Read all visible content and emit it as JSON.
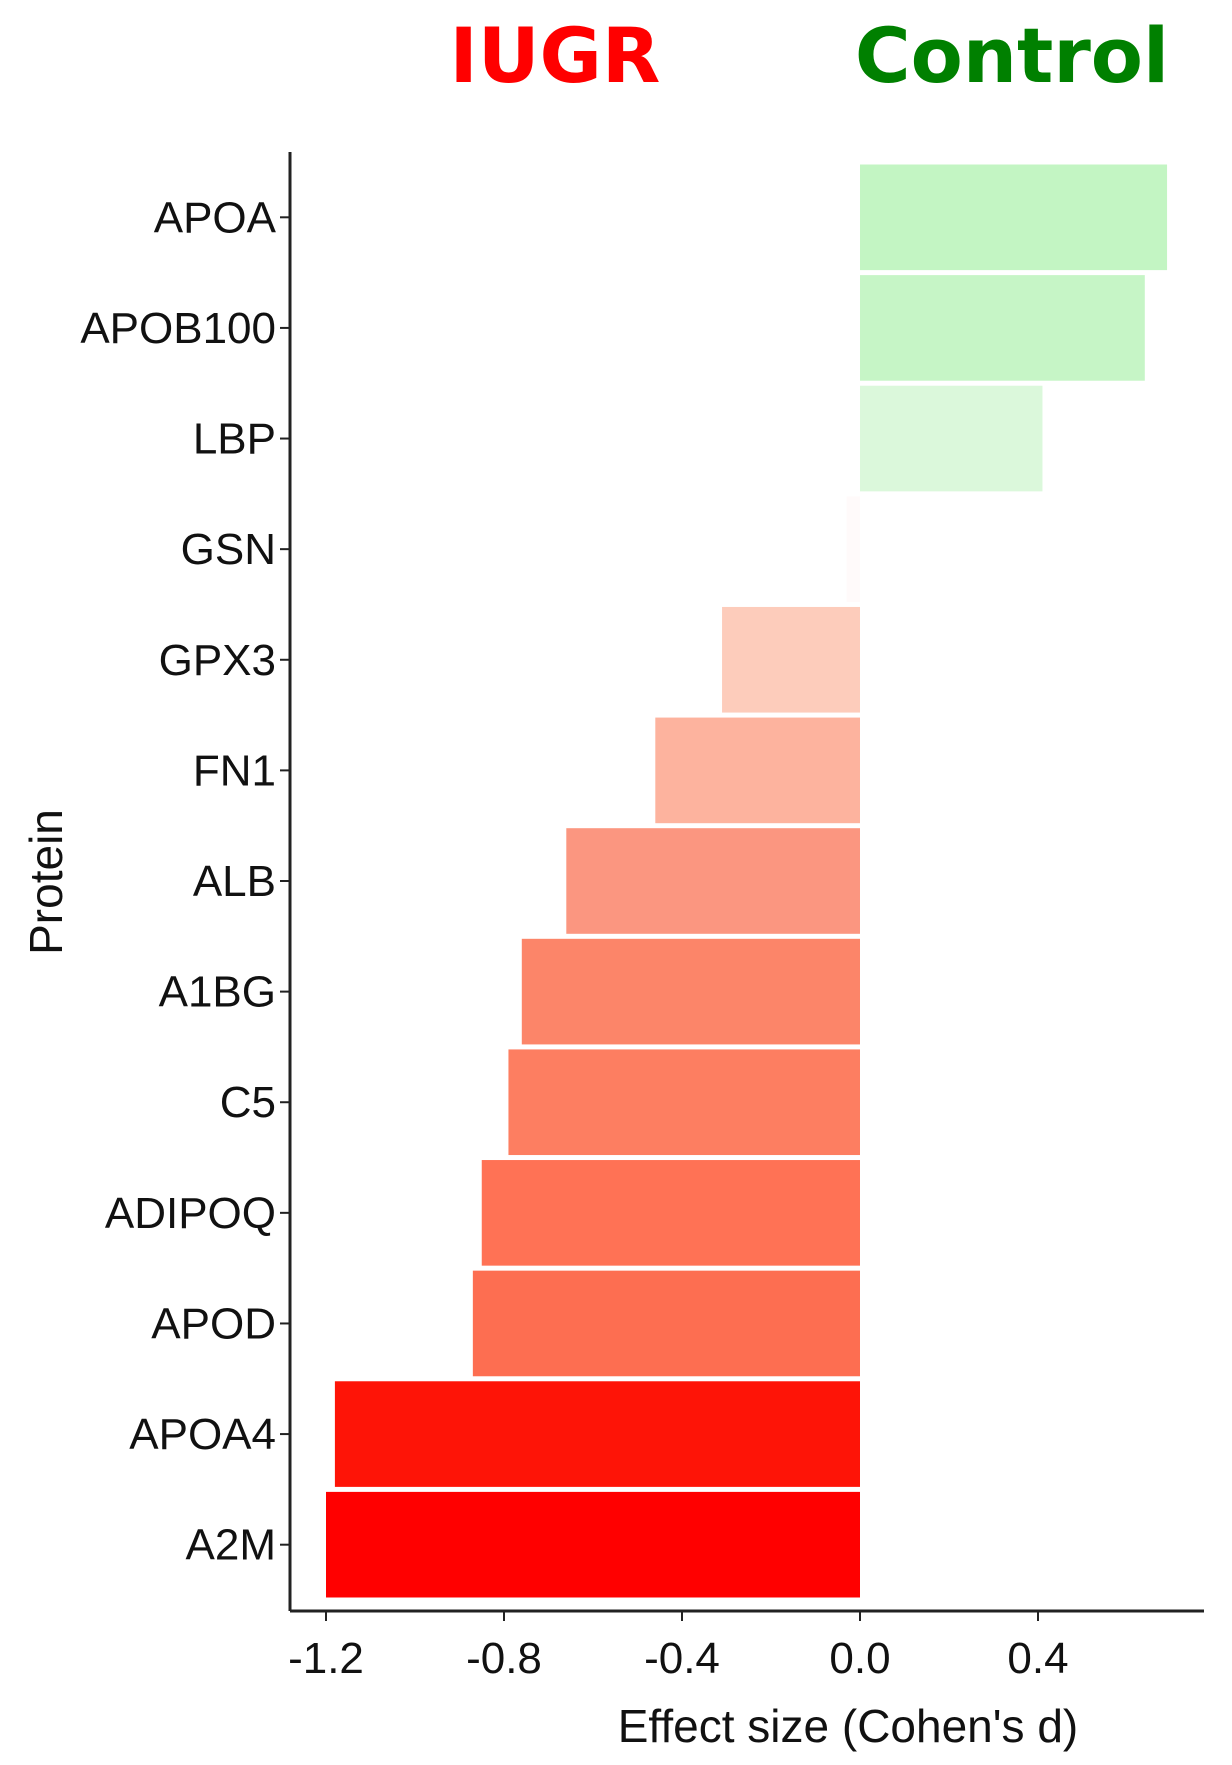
{
  "header": {
    "left_label": "IUGR",
    "left_color": "#ff0000",
    "right_label": "Control",
    "right_color": "#008000"
  },
  "chart_data": {
    "type": "bar",
    "orientation": "horizontal",
    "xlabel": "Effect size (Cohen's d)",
    "ylabel": "Protein",
    "xlim": [
      -1.2,
      0.75
    ],
    "xticks": [
      -1.2,
      -0.8,
      -0.4,
      0.0,
      0.4
    ],
    "xtick_labels": [
      "-1.2",
      "-0.8",
      "-0.4",
      "0.0",
      "0.4"
    ],
    "grid": false,
    "categories": [
      "APOA",
      "APOB100",
      "LBP",
      "GSN",
      "GPX3",
      "FN1",
      "ALB",
      "A1BG",
      "C5",
      "ADIPOQ",
      "APOD",
      "APOA4",
      "A2M"
    ],
    "values": [
      0.69,
      0.64,
      0.41,
      -0.03,
      -0.31,
      -0.46,
      -0.66,
      -0.76,
      -0.79,
      -0.85,
      -0.87,
      -1.18,
      -1.2
    ],
    "colors": [
      "#c3f5c3",
      "#c6f5c6",
      "#dbf8db",
      "#fffafa",
      "#fdccbb",
      "#fdb39e",
      "#fb9680",
      "#fc8569",
      "#fd7e61",
      "#ff7255",
      "#fd6e51",
      "#fe1407",
      "#ff0000"
    ]
  }
}
